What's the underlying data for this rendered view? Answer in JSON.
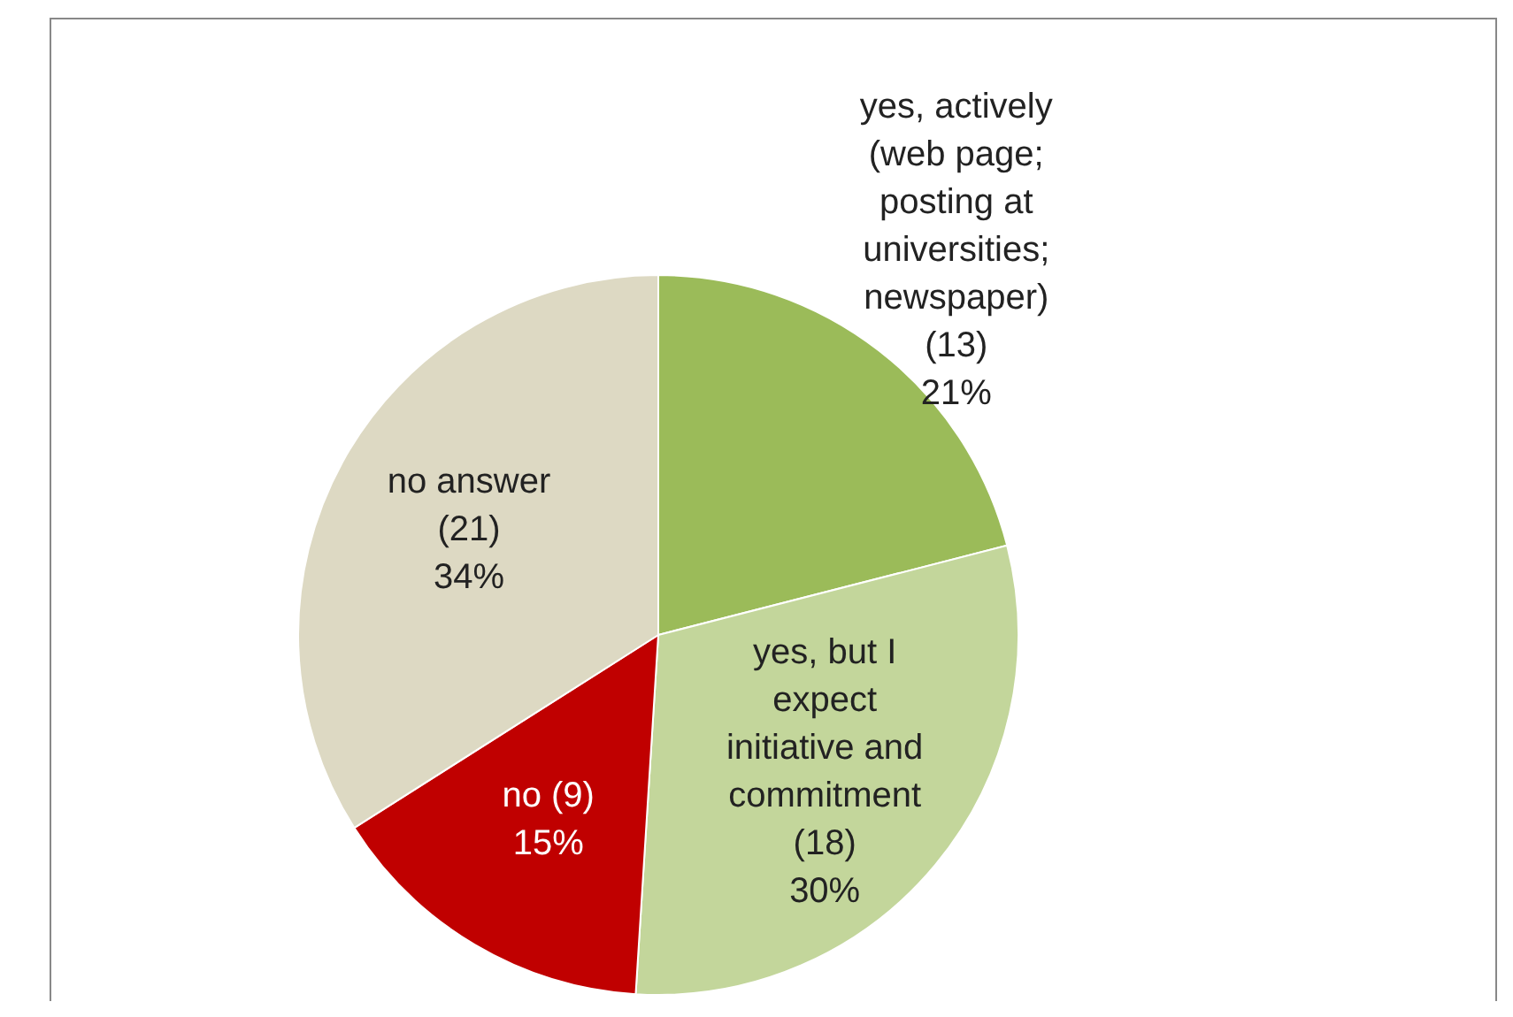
{
  "chart_data": {
    "type": "pie",
    "categories": [
      "yes, actively\n(web page;\nposting at\nuniversities;\nnewspaper)\n(13)",
      "yes, but I\nexpect\ninitiative and\ncommitment\n(18)",
      "no (9)",
      "no answer\n(21)"
    ],
    "values": [
      21,
      30,
      15,
      34
    ],
    "colors": [
      "#9bbb59",
      "#c3d69b",
      "#c00000",
      "#ddd9c3"
    ],
    "value_labels": [
      "21%",
      "30%",
      "15%",
      "34%"
    ],
    "legend": false
  }
}
